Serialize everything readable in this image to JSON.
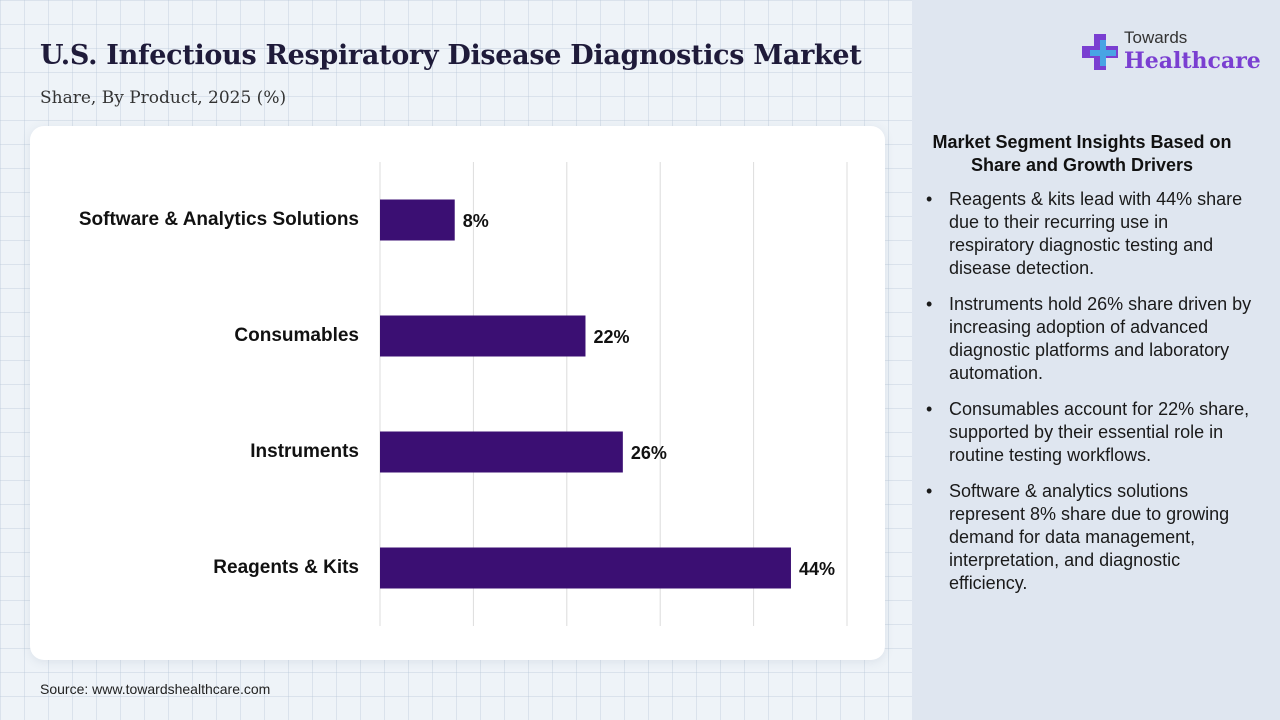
{
  "header": {
    "title": "U.S. Infectious Respiratory Disease Diagnostics Market",
    "subtitle": "Share, By Product, 2025 (%)"
  },
  "logo": {
    "top_text": "Towards",
    "main_text": "Healthcare",
    "icon": "medical-cross-icon"
  },
  "chart_data": {
    "type": "bar",
    "orientation": "horizontal",
    "categories": [
      "Software & Analytics Solutions",
      "Consumables",
      "Instruments",
      "Reagents & Kits"
    ],
    "values": [
      8,
      22,
      26,
      44
    ],
    "value_labels": [
      "8%",
      "22%",
      "26%",
      "44%"
    ],
    "xlim": [
      0,
      50
    ],
    "grid": true,
    "bar_color": "#3b0f73"
  },
  "insights": {
    "title": "Market Segment Insights Based on Share and Growth Drivers",
    "items": [
      "Reagents & kits lead with 44% share due to their recurring use in respiratory diagnostic testing and disease detection.",
      "Instruments hold 26% share driven by increasing adoption of advanced diagnostic platforms and laboratory automation.",
      "Consumables account for 22% share, supported by their essential role in routine testing workflows.",
      "Software & analytics solutions represent 8% share due to growing demand for data management, interpretation, and diagnostic efficiency."
    ]
  },
  "footer": {
    "source": "Source: www.towardshealthcare.com"
  },
  "colors": {
    "accent": "#3b0f73",
    "brand": "#7a3fd1",
    "panel": "#dfe6f0"
  }
}
